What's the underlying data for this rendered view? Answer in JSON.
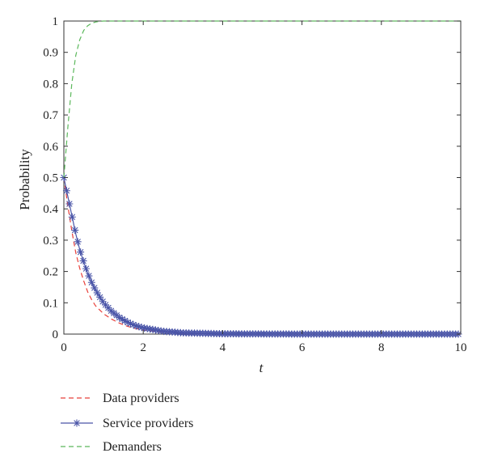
{
  "chart_data": {
    "type": "line",
    "xlabel": "t",
    "ylabel": "Probability",
    "xlim": [
      0,
      10
    ],
    "ylim": [
      0,
      1
    ],
    "xticks": [
      "0",
      "2",
      "4",
      "6",
      "8",
      "10"
    ],
    "yticks": [
      "0",
      "0.1",
      "0.2",
      "0.3",
      "0.4",
      "0.5",
      "0.6",
      "0.7",
      "0.8",
      "0.9",
      "1"
    ],
    "grid": false,
    "legend_position": "bottom-left, below plot",
    "series": [
      {
        "name": "Data providers",
        "color": "#e8403a",
        "style": "dashed",
        "x": [
          0,
          0.1,
          0.2,
          0.3,
          0.4,
          0.5,
          0.6,
          0.7,
          0.8,
          1.0,
          1.2,
          1.4,
          1.6,
          1.8,
          2.0,
          2.5,
          3.0,
          4.0,
          6.0,
          8.0,
          10.0
        ],
        "y": [
          0.5,
          0.41,
          0.33,
          0.26,
          0.21,
          0.17,
          0.135,
          0.11,
          0.09,
          0.065,
          0.048,
          0.035,
          0.025,
          0.018,
          0.013,
          0.006,
          0.003,
          0.001,
          0,
          0,
          0
        ]
      },
      {
        "name": "Service providers",
        "color": "#4a55a8",
        "style": "solid-star",
        "x": [
          0,
          0.1,
          0.2,
          0.3,
          0.4,
          0.5,
          0.6,
          0.7,
          0.8,
          1.0,
          1.2,
          1.4,
          1.6,
          1.8,
          2.0,
          2.5,
          3.0,
          4.0,
          6.0,
          8.0,
          10.0
        ],
        "y": [
          0.5,
          0.44,
          0.38,
          0.32,
          0.27,
          0.23,
          0.195,
          0.165,
          0.14,
          0.1,
          0.073,
          0.053,
          0.038,
          0.027,
          0.02,
          0.009,
          0.004,
          0.001,
          0,
          0,
          0
        ]
      },
      {
        "name": "Demanders",
        "color": "#5cb85c",
        "style": "dashed",
        "x": [
          0,
          0.1,
          0.2,
          0.3,
          0.4,
          0.5,
          0.6,
          0.7,
          0.8,
          0.9,
          1.0,
          1.2,
          1.5,
          2.0,
          4.0,
          6.0,
          8.0,
          10.0
        ],
        "y": [
          0.5,
          0.66,
          0.8,
          0.89,
          0.94,
          0.97,
          0.985,
          0.993,
          0.997,
          0.999,
          1.0,
          1.0,
          1.0,
          1.0,
          1.0,
          1.0,
          1.0,
          1.0
        ]
      }
    ]
  }
}
